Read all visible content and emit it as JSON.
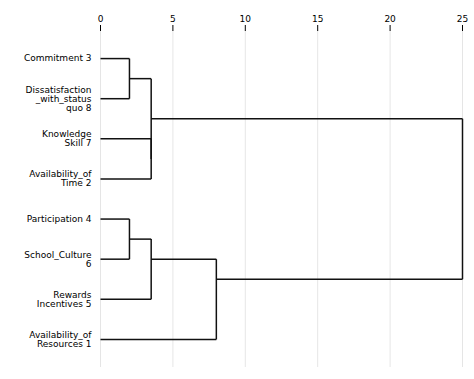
{
  "chart_data": {
    "type": "dendrogram",
    "orientation": "horizontal",
    "categories": [
      "Commitment 3",
      "Dissatisfaction\n_with_status\nquo 8",
      "Knowledge\nSkill 7",
      "Availability_of\nTime 2",
      "Participation 4",
      "School_Culture\n6",
      "Rewards\nIncentives 5",
      "Availability_of\nResources 1"
    ],
    "merges": [
      {
        "nodes": [
          0,
          1
        ],
        "height": 2.0
      },
      {
        "nodes": [
          2,
          3
        ],
        "height": 3.5
      },
      {
        "nodes": [
          8,
          9
        ],
        "height": 3.5
      },
      {
        "nodes": [
          4,
          5
        ],
        "height": 2.0
      },
      {
        "nodes": [
          11,
          6
        ],
        "height": 3.5
      },
      {
        "nodes": [
          12,
          7
        ],
        "height": 8.0
      },
      {
        "nodes": [
          10,
          13
        ],
        "height": 25.0
      }
    ],
    "xlim": [
      0,
      25
    ],
    "xticks": [
      0,
      5,
      10,
      15,
      20,
      25
    ],
    "color": "#111111",
    "grid": true
  }
}
